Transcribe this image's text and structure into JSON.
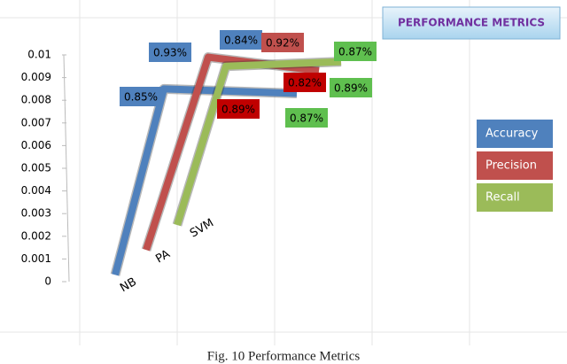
{
  "chart_data": {
    "type": "line",
    "title": "PERFORMANCE METRICS",
    "caption": "Fig. 10 Performance Metrics",
    "ylim": [
      0,
      0.01
    ],
    "yticks": [
      0,
      0.001,
      0.002,
      0.003,
      0.004,
      0.005,
      0.006,
      0.007,
      0.008,
      0.009,
      0.01
    ],
    "depth_labels": [
      "NB",
      "PA",
      "SVM"
    ],
    "series": [
      {
        "name": "Accuracy",
        "color": "#4f81bd",
        "values": [
          0.0003,
          0.0085,
          0.0083
        ]
      },
      {
        "name": "Precision",
        "color": "#c0504d",
        "values": [
          0.0014,
          0.0099,
          0.0093
        ]
      },
      {
        "name": "Recall",
        "color": "#9bbb59",
        "values": [
          0.0025,
          0.0095,
          0.0097
        ]
      }
    ],
    "annotations": [
      {
        "text": "0.85%",
        "color": "#4f81bd"
      },
      {
        "text": "0.93%",
        "color": "#4f81bd"
      },
      {
        "text": "0.84%",
        "color": "#4f81bd"
      },
      {
        "text": "0.92%",
        "color": "#c0504d"
      },
      {
        "text": "0.82%",
        "color": "#c00000"
      },
      {
        "text": "0.89%",
        "color": "#c00000"
      },
      {
        "text": "0.87%",
        "color": "#5fbf4f"
      },
      {
        "text": "0.89%",
        "color": "#5fbf4f"
      },
      {
        "text": "0.87%",
        "color": "#5fbf4f"
      }
    ]
  }
}
